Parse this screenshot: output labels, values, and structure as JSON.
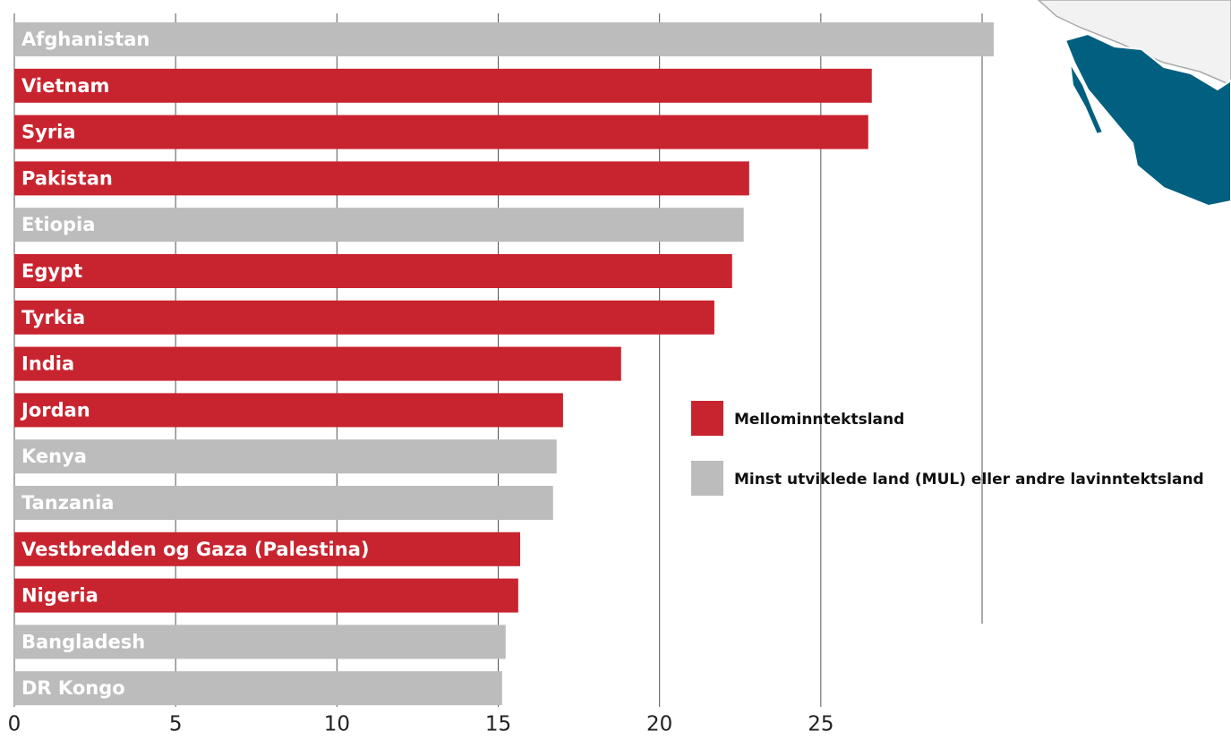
{
  "chart_data": {
    "type": "bar",
    "orientation": "horizontal",
    "categories": [
      "Afghanistan",
      "Vietnam",
      "Syria",
      "Pakistan",
      "Etiopia",
      "Egypt",
      "Tyrkia",
      "India",
      "Jordan",
      "Kenya",
      "Tanzania",
      "Vestbredden og Gaza (Palestina)",
      "Nigeria",
      "Bangladesh",
      "DR Kongo"
    ],
    "values": [
      30.36,
      26.58,
      26.47,
      22.78,
      22.61,
      22.25,
      21.7,
      18.81,
      17.01,
      16.81,
      16.7,
      15.68,
      15.62,
      15.23,
      15.12
    ],
    "colors": [
      "#bcbcbc",
      "#c8242f",
      "#c8242f",
      "#c8242f",
      "#bcbcbc",
      "#c8242f",
      "#c8242f",
      "#c8242f",
      "#c8242f",
      "#bcbcbc",
      "#bcbcbc",
      "#c8242f",
      "#c8242f",
      "#bcbcbc",
      "#bcbcbc"
    ],
    "legend": [
      {
        "name": "Mellominntektsland",
        "color": "#c8242f"
      },
      {
        "name": "Minst utviklede land (MUL) eller andre lavinntektsland",
        "color": "#bcbcbc"
      }
    ],
    "xlim": [
      0,
      30
    ],
    "xticks": [
      0,
      5,
      10,
      15,
      20,
      25
    ],
    "grid": true
  }
}
